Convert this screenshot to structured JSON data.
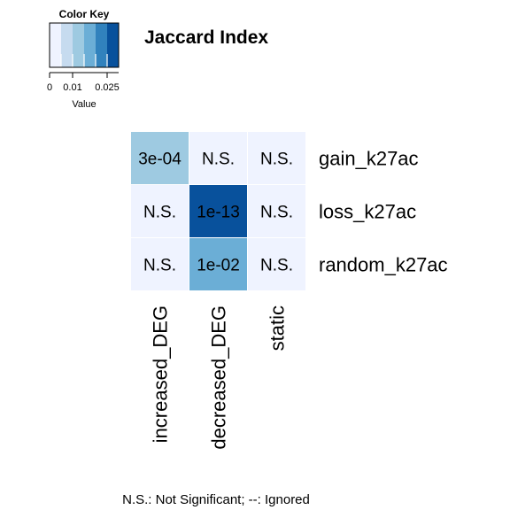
{
  "chart_data": {
    "type": "heatmap",
    "title": "Jaccard Index",
    "rows": [
      "gain_k27ac",
      "loss_k27ac",
      "random_k27ac"
    ],
    "columns": [
      "increased_DEG",
      "decreased_DEG",
      "static"
    ],
    "cell_labels": [
      [
        "3e-04",
        "N.S.",
        "N.S."
      ],
      [
        "N.S.",
        "1e-13",
        "N.S."
      ],
      [
        "N.S.",
        "1e-02",
        "N.S."
      ]
    ],
    "cell_values": [
      [
        0.012,
        0.001,
        0.001
      ],
      [
        0.001,
        0.028,
        0.001
      ],
      [
        0.001,
        0.018,
        0.001
      ]
    ],
    "color_key": {
      "title": "Color Key",
      "xlabel": "Value",
      "ticks": [
        {
          "value": 0,
          "label": "0"
        },
        {
          "value": 0.01,
          "label": "0.01"
        },
        {
          "value": 0.025,
          "label": "0.025"
        }
      ],
      "range": [
        0,
        0.03
      ],
      "colors": [
        "#eff3ff",
        "#c6dbef",
        "#9ecae1",
        "#6baed6",
        "#3182bd",
        "#08519c"
      ]
    },
    "footnote": "N.S.: Not Significant; --: Ignored"
  }
}
